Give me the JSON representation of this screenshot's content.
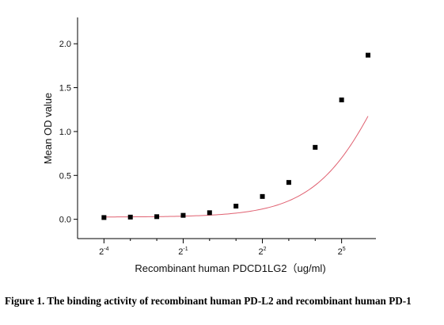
{
  "chart_data": {
    "type": "scatter",
    "x_scale": "log2",
    "xlabel": "Recombinant human PDCD1LG2（ug/ml)",
    "ylabel": "Mean OD value",
    "ylim": [
      -0.22,
      2.3
    ],
    "xlim_exponent": [
      -5.0,
      6.3
    ],
    "y_ticks": [
      {
        "value": 0.0,
        "label": "0.0"
      },
      {
        "value": 0.5,
        "label": "0.5"
      },
      {
        "value": 1.0,
        "label": "1.0"
      },
      {
        "value": 1.5,
        "label": "1.5"
      },
      {
        "value": 2.0,
        "label": "2.0"
      }
    ],
    "x_ticks": [
      {
        "base": "2",
        "exponent": "-4",
        "value_exponent": -4
      },
      {
        "base": "2",
        "exponent": "-1",
        "value_exponent": -1
      },
      {
        "base": "2",
        "exponent": "2",
        "value_exponent": 2
      },
      {
        "base": "2",
        "exponent": "5",
        "value_exponent": 5
      }
    ],
    "x_minor_tick_exponents": [
      -3,
      -2,
      0,
      1,
      3,
      4
    ],
    "series": [
      {
        "x": [
          0.0625,
          0.125,
          0.25,
          0.5,
          1,
          2,
          4,
          8,
          16,
          32,
          64
        ],
        "y": [
          0.02,
          0.025,
          0.03,
          0.045,
          0.075,
          0.15,
          0.26,
          0.42,
          0.82,
          1.36,
          1.87
        ],
        "color": "#000000",
        "marker": "square"
      }
    ],
    "fit_curve": {
      "model": "4PL",
      "bottom": 0.025,
      "top": 3.4,
      "ec50": 120,
      "hill": 1.05,
      "color": "#e06070"
    },
    "grid": false
  },
  "caption": "Figure 1. The binding activity of recombinant human PD-L2 and recombinant human PD-1"
}
